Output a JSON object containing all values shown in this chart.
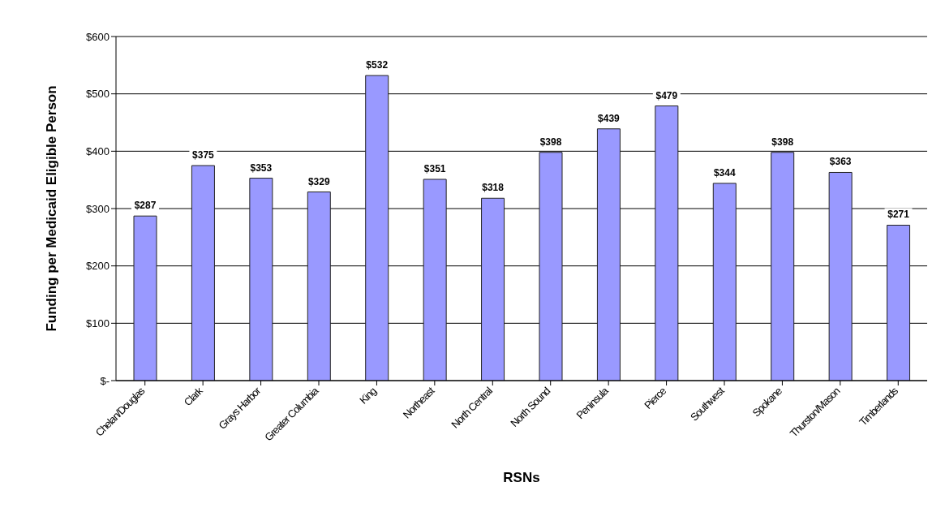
{
  "chart_data": {
    "type": "bar",
    "xlabel": "RSNs",
    "ylabel": "Funding per Medicaid Eligible Person",
    "categories": [
      "Chelan/Douglas",
      "Clark",
      "Grays Harbor",
      "Greater Columbia",
      "King",
      "Northeast",
      "North Central",
      "North Sound",
      "Peninsula",
      "Pierce",
      "Southwest",
      "Spokane",
      "Thurston/Mason",
      "Timberlands"
    ],
    "values": [
      287,
      375,
      353,
      329,
      532,
      351,
      318,
      398,
      439,
      479,
      344,
      398,
      363,
      271
    ],
    "value_labels": [
      "$287",
      "$375",
      "$353",
      "$329",
      "$532",
      "$351",
      "$318",
      "$398",
      "$439",
      "$479",
      "$344",
      "$398",
      "$363",
      "$271"
    ],
    "color": "#9999ff",
    "ylim": [
      0,
      600
    ],
    "yticks": [
      {
        "value": 0,
        "label": "$-"
      },
      {
        "value": 100,
        "label": "$100"
      },
      {
        "value": 200,
        "label": "$200"
      },
      {
        "value": 300,
        "label": "$300"
      },
      {
        "value": 400,
        "label": "$400"
      },
      {
        "value": 500,
        "label": "$500"
      },
      {
        "value": 600,
        "label": "$600"
      }
    ],
    "grid": "y",
    "legend": false
  }
}
